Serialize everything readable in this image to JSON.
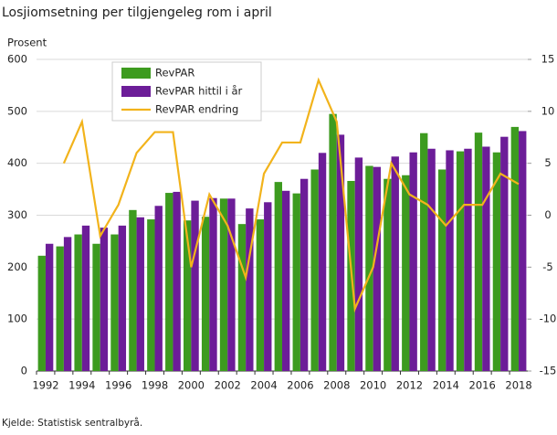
{
  "chart_data": {
    "type": "bar-line",
    "title": "Losjiomsetning per tilgjengeleg rom i april",
    "y_label": "Prosent",
    "source": "Kjelde: Statistisk sentralbyrå.",
    "categories": [
      "1992",
      null,
      "1994",
      null,
      "1996",
      null,
      "1998",
      null,
      "2000",
      null,
      "2002",
      null,
      "2004",
      null,
      "2006",
      null,
      "2008",
      null,
      "2010",
      null,
      "2012",
      null,
      "2014",
      null,
      "2016",
      null,
      "2018"
    ],
    "series": [
      {
        "name": "RevPAR",
        "color": "#3d9b1f",
        "kind": "bar",
        "values": [
          222,
          240,
          263,
          245,
          263,
          310,
          292,
          343,
          290,
          297,
          332,
          283,
          292,
          364,
          342,
          388,
          495,
          366,
          395,
          370,
          377,
          458,
          388,
          423,
          459,
          421,
          470
        ]
      },
      {
        "name": "RevPAR hittil i år",
        "color": "#6c1d98",
        "kind": "bar",
        "values": [
          245,
          258,
          280,
          276,
          280,
          296,
          318,
          345,
          328,
          333,
          332,
          313,
          325,
          347,
          370,
          420,
          455,
          411,
          393,
          413,
          421,
          428,
          425,
          428,
          432,
          451,
          462
        ]
      },
      {
        "name": "RevPAR endring",
        "color": "#f2b31b",
        "kind": "line",
        "axis": "y2",
        "values": [
          null,
          5,
          9,
          -2,
          1,
          6,
          8,
          8,
          -5,
          2,
          -1,
          -6,
          4,
          7,
          7,
          13,
          9,
          -9,
          -5,
          5,
          2,
          1,
          -1,
          1,
          1,
          4,
          3
        ]
      }
    ],
    "ylim": [
      0,
      600
    ],
    "yticks": [
      0,
      100,
      200,
      300,
      400,
      500,
      600
    ],
    "y2lim": [
      -15,
      15
    ],
    "y2ticks": [
      -15,
      -10,
      -5,
      0,
      5,
      10,
      15
    ],
    "grid": true
  }
}
